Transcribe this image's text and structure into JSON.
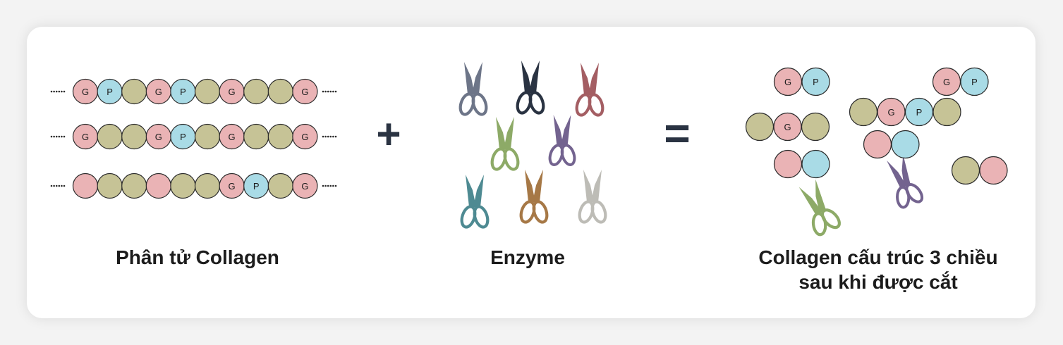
{
  "colors": {
    "G": "#eab3b5",
    "P": "#a9dbe6",
    "X": "#c6c396",
    "outline": "#2a2a2a",
    "operator": "#2a3342",
    "card": "#ffffff",
    "background": "#f3f3f3"
  },
  "operators": {
    "plus": "+",
    "equals": "="
  },
  "chains": [
    [
      "G",
      "P",
      "X",
      "G",
      "P",
      "X",
      "G",
      "X",
      "X",
      "G"
    ],
    [
      "G",
      "X",
      "X",
      "G",
      "P",
      "X",
      "G",
      "X",
      "X",
      "G"
    ],
    [
      "R",
      "X",
      "X",
      "R",
      "X",
      "X",
      "G",
      "P",
      "X",
      "G"
    ]
  ],
  "fragments": [
    [
      "G",
      "P"
    ],
    [
      "G",
      "P"
    ],
    [
      "X",
      "G",
      "X"
    ],
    [
      "X",
      "G",
      "P",
      "X"
    ],
    [
      "R",
      "B"
    ],
    [
      "R",
      "B"
    ],
    [
      "X",
      "R"
    ]
  ],
  "scissors": [
    {
      "name": "slate",
      "color": "#6d7588"
    },
    {
      "name": "navy",
      "color": "#2a3342"
    },
    {
      "name": "rose",
      "color": "#a45e63"
    },
    {
      "name": "green",
      "color": "#8daa67"
    },
    {
      "name": "purple",
      "color": "#73638f"
    },
    {
      "name": "teal",
      "color": "#4e8a92"
    },
    {
      "name": "brown",
      "color": "#a67846"
    },
    {
      "name": "gray",
      "color": "#bdbcb6"
    },
    {
      "name": "purple-cutting",
      "color": "#73638f"
    },
    {
      "name": "green-cutting",
      "color": "#8daa67"
    }
  ],
  "labels": {
    "left": "Phân tử Collagen",
    "middle": "Enzyme",
    "right_line1": "Collagen cấu trúc 3 chiều",
    "right_line2": "sau khi được cắt"
  }
}
